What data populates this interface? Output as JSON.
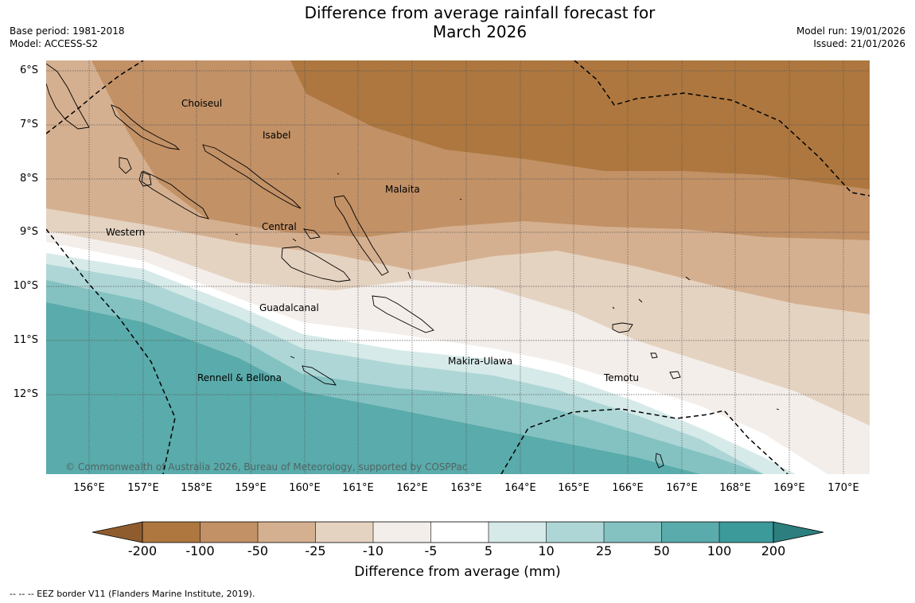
{
  "title_line1": "Difference from average rainfall forecast for",
  "title_line2": "March 2026",
  "base_period": "Base period: 1981-2018",
  "model": "Model: ACCESS-S2",
  "model_run": "Model run: 19/01/2026",
  "issued": "Issued: 21/01/2026",
  "lat_labels": [
    "6°S",
    "7°S",
    "8°S",
    "9°S",
    "10°S",
    "11°S",
    "12°S"
  ],
  "lon_labels": [
    "156°E",
    "157°E",
    "158°E",
    "159°E",
    "160°E",
    "161°E",
    "162°E",
    "163°E",
    "164°E",
    "165°E",
    "166°E",
    "167°E",
    "168°E",
    "169°E",
    "170°E"
  ],
  "places": [
    "Choiseul",
    "Isabel",
    "Malaita",
    "Western",
    "Central",
    "Guadalcanal",
    "Makira-Ulawa",
    "Rennell & Bellona",
    "Temotu"
  ],
  "copyright": "© Commonwealth of Australia 2026, Bureau of Meteorology, supported by COSPPac",
  "colorbar": {
    "title": "Difference from average (mm)",
    "ticks": [
      "-200",
      "-100",
      "-50",
      "-25",
      "-10",
      "-5",
      "5",
      "10",
      "25",
      "50",
      "100",
      "200"
    ],
    "colors": [
      "#8f5c2e",
      "#ad773f",
      "#c29166",
      "#d5b090",
      "#e5d3c1",
      "#f3eeea",
      "#ffffff",
      "#d6eae9",
      "#aed6d6",
      "#84c2c2",
      "#5aabab",
      "#3c9a9a",
      "#2d7f7f"
    ]
  },
  "footnote": "--  --  -- EEZ border V11 (Flanders Marine Institute, 2019)."
}
